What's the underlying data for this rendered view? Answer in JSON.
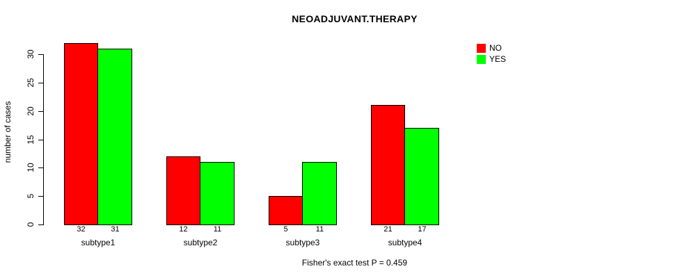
{
  "title": "NEOADJUVANT.THERAPY",
  "annotation": "Fisher's exact test P = 0.459",
  "ylabel": "number of cases",
  "background_color": "#FFFFFF",
  "axis_color": "#000000",
  "legend": [
    {
      "label": "NO",
      "color": "#FF0000"
    },
    {
      "label": "YES",
      "color": "#00FF00"
    }
  ],
  "chart_data": {
    "type": "bar",
    "title": "NEOADJUVANT.THERAPY",
    "xlabel": "",
    "ylabel": "number of cases",
    "categories": [
      "subtype1",
      "subtype2",
      "subtype3",
      "subtype4"
    ],
    "series": [
      {
        "name": "NO",
        "color": "#FF0000",
        "values": [
          32,
          12,
          5,
          21
        ]
      },
      {
        "name": "YES",
        "color": "#00FF00",
        "values": [
          31,
          11,
          11,
          17
        ]
      }
    ],
    "bar_value_labels": [
      [
        32,
        31
      ],
      [
        12,
        11
      ],
      [
        5,
        11
      ],
      [
        21,
        17
      ]
    ],
    "yticks": [
      0,
      5,
      10,
      15,
      20,
      25,
      30
    ],
    "ylim": [
      0,
      32
    ],
    "grid": false,
    "legend_position": "top-right",
    "annotation": "Fisher's exact test P = 0.459"
  }
}
